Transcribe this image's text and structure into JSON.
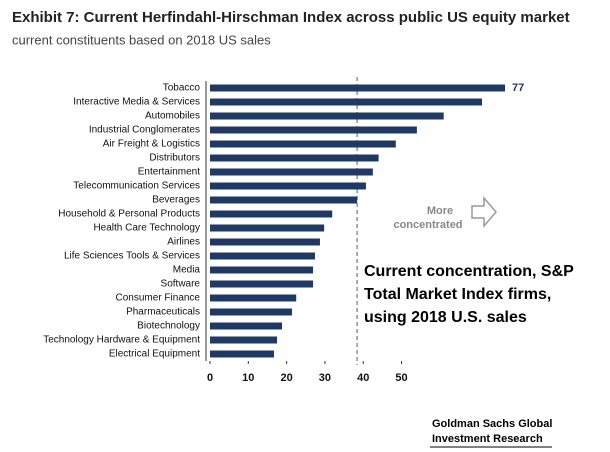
{
  "chart_data": {
    "type": "bar",
    "orientation": "horizontal",
    "title": "Exhibit 7: Current Herfindahl-Hirschman Index across public US equity market",
    "subtitle": "current constituents based on 2018 US sales",
    "categories": [
      "Tobacco",
      "Interactive Media & Services",
      "Automobiles",
      "Industrial Conglomerates",
      "Air Freight & Logistics",
      "Distributors",
      "Entertainment",
      "Telecommunication Services",
      "Beverages",
      "Household & Personal Products",
      "Health Care Technology",
      "Airlines",
      "Life Sciences Tools & Services",
      "Media",
      "Software",
      "Consumer Finance",
      "Pharmaceuticals",
      "Biotechnology",
      "Technology Hardware & Equipment",
      "Electrical Equipment"
    ],
    "values": [
      77,
      71,
      61,
      54,
      48.5,
      44,
      42.5,
      40.7,
      38.4,
      31.9,
      29.8,
      28.7,
      27.4,
      26.9,
      26.9,
      22.5,
      21.4,
      18.8,
      17.5,
      16.7
    ],
    "value_labels": [
      "77",
      null,
      null,
      null,
      null,
      null,
      null,
      null,
      null,
      null,
      null,
      null,
      null,
      null,
      null,
      null,
      null,
      null,
      null,
      null
    ],
    "color": "#1f3864",
    "xlim": [
      0,
      77
    ],
    "xticks": [
      0,
      10,
      20,
      30,
      40,
      50
    ],
    "reference_line": 38.4,
    "annotations": [
      "More",
      "concentrated",
      "Current concentration, S&P",
      "Total Market Index firms,",
      "using 2018 U.S. sales"
    ],
    "source": [
      "Goldman Sachs Global",
      "Investment Research"
    ]
  }
}
